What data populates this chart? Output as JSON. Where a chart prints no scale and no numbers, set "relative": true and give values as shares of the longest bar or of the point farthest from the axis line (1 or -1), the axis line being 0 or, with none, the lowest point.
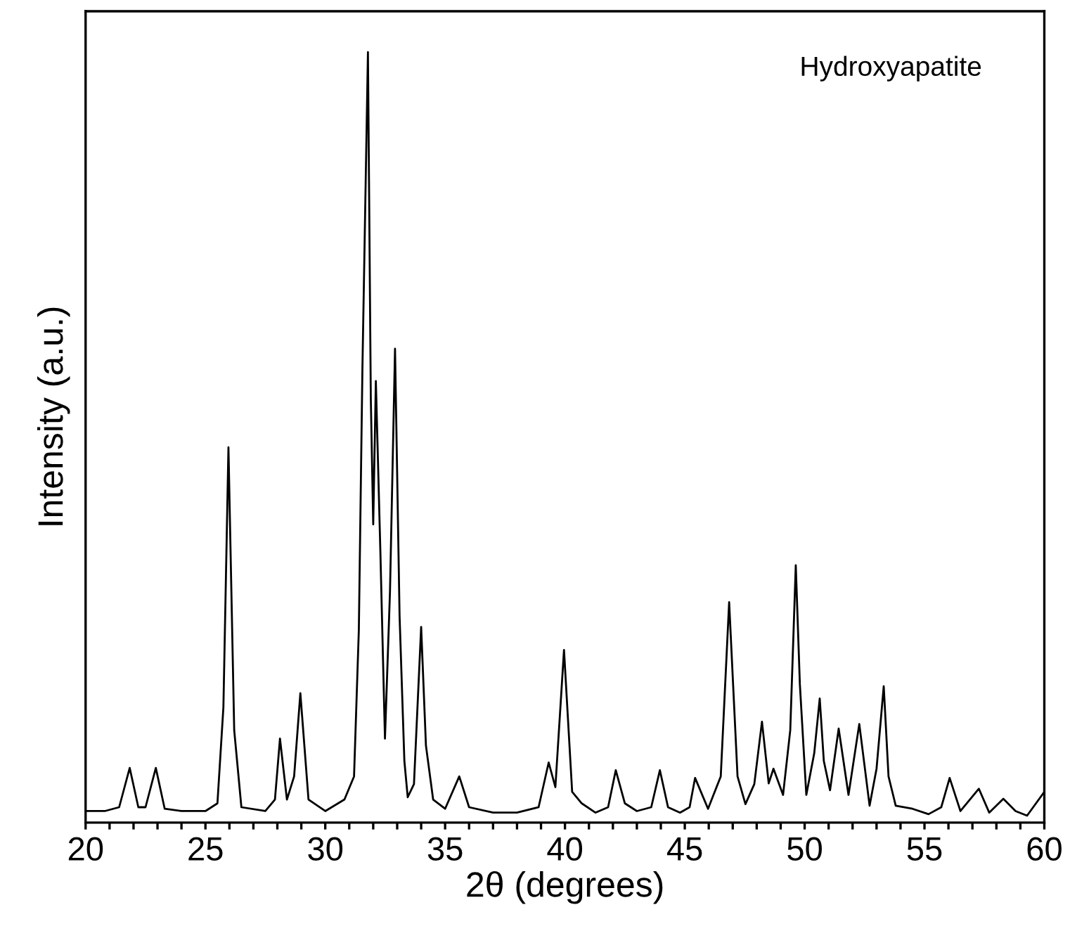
{
  "chart_data": {
    "type": "line",
    "relative": true,
    "xlabel": "2θ (degrees)",
    "ylabel": "Intensity (a.u.)",
    "annotations": [
      "Hydroxyapatite"
    ],
    "xlim": [
      20,
      60
    ],
    "xticks": [
      20,
      {
        "value": 21,
        "label": null
      },
      {
        "value": 22,
        "label": null
      },
      {
        "value": 23,
        "label": null
      },
      {
        "value": 24,
        "label": null
      },
      25,
      {
        "value": 26,
        "label": null
      },
      {
        "value": 27,
        "label": null
      },
      {
        "value": 28,
        "label": null
      },
      {
        "value": 29,
        "label": null
      },
      30,
      {
        "value": 31,
        "label": null
      },
      {
        "value": 32,
        "label": null
      },
      {
        "value": 33,
        "label": null
      },
      {
        "value": 34,
        "label": null
      },
      35,
      {
        "value": 36,
        "label": null
      },
      {
        "value": 37,
        "label": null
      },
      {
        "value": 38,
        "label": null
      },
      {
        "value": 39,
        "label": null
      },
      40,
      {
        "value": 41,
        "label": null
      },
      {
        "value": 42,
        "label": null
      },
      {
        "value": 43,
        "label": null
      },
      {
        "value": 44,
        "label": null
      },
      45,
      {
        "value": 46,
        "label": null
      },
      {
        "value": 47,
        "label": null
      },
      {
        "value": 48,
        "label": null
      },
      {
        "value": 49,
        "label": null
      },
      50,
      {
        "value": 51,
        "label": null
      },
      {
        "value": 52,
        "label": null
      },
      {
        "value": 53,
        "label": null
      },
      {
        "value": 54,
        "label": null
      },
      55,
      {
        "value": 56,
        "label": null
      },
      {
        "value": 57,
        "label": null
      },
      {
        "value": 58,
        "label": null
      },
      {
        "value": 59,
        "label": null
      },
      60
    ],
    "tick_labels": "x",
    "grid": false,
    "legend": false,
    "marker": "none",
    "line_style": "solid",
    "series": [
      {
        "color": "#000000",
        "x": [
          20.0,
          20.8,
          21.4,
          21.84,
          22.2,
          22.5,
          22.93,
          23.3,
          24.0,
          25.0,
          25.5,
          25.75,
          25.96,
          26.2,
          26.5,
          27.5,
          27.9,
          28.11,
          28.4,
          28.7,
          28.96,
          29.3,
          30.0,
          30.8,
          31.2,
          31.4,
          31.55,
          31.78,
          31.9,
          32.0,
          32.11,
          32.3,
          32.49,
          32.7,
          32.91,
          33.1,
          33.3,
          33.44,
          33.7,
          34.0,
          34.2,
          34.5,
          35.0,
          35.59,
          36.0,
          37.0,
          38.0,
          38.9,
          39.32,
          39.6,
          39.96,
          40.3,
          40.7,
          41.27,
          41.8,
          42.12,
          42.5,
          43.0,
          43.6,
          43.96,
          44.3,
          44.8,
          45.2,
          45.43,
          45.97,
          46.5,
          46.85,
          47.2,
          47.53,
          47.9,
          48.22,
          48.5,
          48.7,
          49.1,
          49.4,
          49.63,
          49.8,
          50.07,
          50.4,
          50.63,
          50.8,
          51.06,
          51.42,
          51.83,
          52.28,
          52.71,
          53.0,
          53.3,
          53.5,
          53.8,
          54.5,
          55.17,
          55.7,
          56.05,
          56.5,
          57.27,
          57.7,
          58.29,
          58.8,
          59.28,
          60.0
        ],
        "values": [
          0.015,
          0.015,
          0.02,
          0.071,
          0.02,
          0.02,
          0.071,
          0.018,
          0.015,
          0.015,
          0.025,
          0.15,
          0.487,
          0.12,
          0.02,
          0.015,
          0.03,
          0.109,
          0.03,
          0.06,
          0.168,
          0.03,
          0.015,
          0.03,
          0.06,
          0.25,
          0.59,
          1.0,
          0.55,
          0.387,
          0.573,
          0.35,
          0.109,
          0.3,
          0.615,
          0.268,
          0.08,
          0.033,
          0.05,
          0.254,
          0.1,
          0.03,
          0.018,
          0.06,
          0.02,
          0.013,
          0.013,
          0.02,
          0.078,
          0.046,
          0.224,
          0.04,
          0.025,
          0.013,
          0.02,
          0.068,
          0.025,
          0.015,
          0.02,
          0.068,
          0.02,
          0.013,
          0.02,
          0.058,
          0.018,
          0.06,
          0.286,
          0.06,
          0.024,
          0.05,
          0.131,
          0.051,
          0.07,
          0.036,
          0.12,
          0.334,
          0.18,
          0.036,
          0.09,
          0.161,
          0.08,
          0.042,
          0.122,
          0.036,
          0.128,
          0.022,
          0.07,
          0.177,
          0.06,
          0.022,
          0.018,
          0.011,
          0.02,
          0.058,
          0.015,
          0.044,
          0.013,
          0.031,
          0.015,
          0.009,
          0.04
        ]
      }
    ]
  }
}
